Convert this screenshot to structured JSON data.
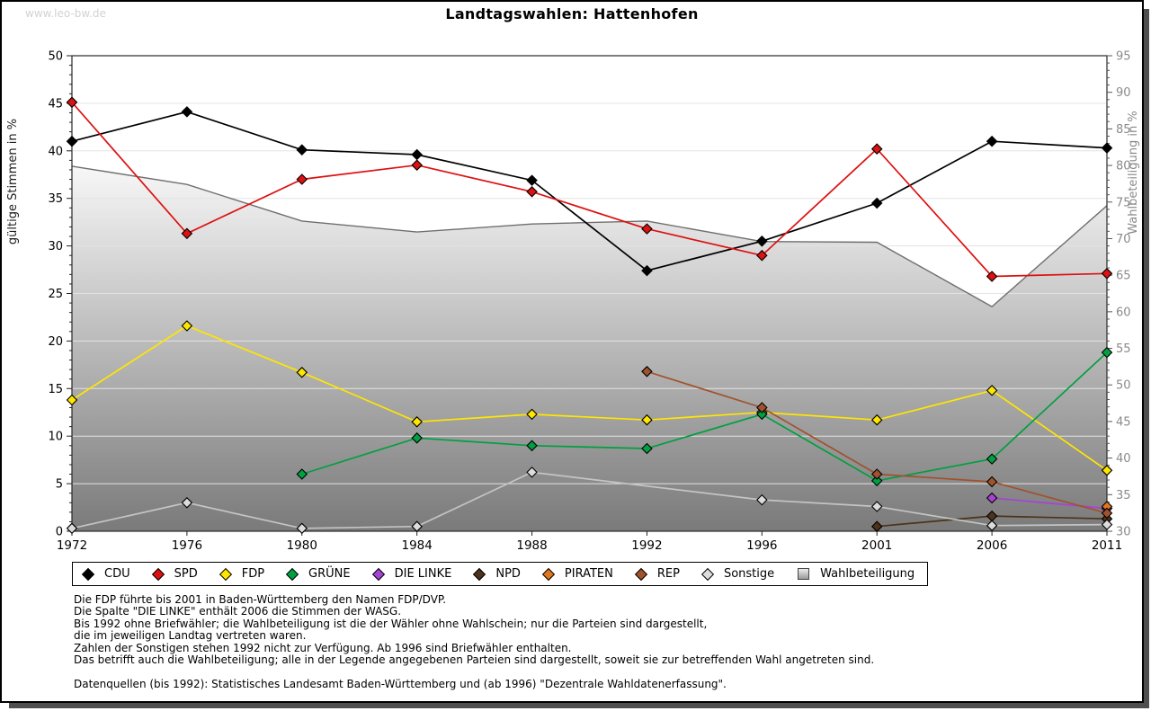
{
  "page": {
    "watermark": "www.leo-bw.de",
    "title": "Landtagswahlen: Hattenhofen"
  },
  "chart_data": {
    "type": "line",
    "title": "Landtagswahlen: Hattenhofen",
    "x_categories": [
      "1972",
      "1976",
      "1980",
      "1984",
      "1988",
      "1992",
      "1996",
      "2001",
      "2006",
      "2011"
    ],
    "y_left": {
      "label": "gültige Stimmen in %",
      "min": 0,
      "max": 50,
      "tick_step": 5,
      "minor_step": 1
    },
    "y_right": {
      "label": "Wahlbeteiligung in %",
      "min": 30,
      "max": 95,
      "tick_step": 5,
      "minor_step": 1
    },
    "grid": true,
    "legend_position": "bottom",
    "series": [
      {
        "name": "CDU",
        "color": "#000000",
        "axis": "left",
        "values": [
          41.0,
          44.1,
          40.1,
          39.6,
          36.9,
          27.4,
          30.5,
          34.5,
          41.0,
          40.3
        ]
      },
      {
        "name": "SPD",
        "color": "#dd1111",
        "axis": "left",
        "values": [
          45.1,
          31.3,
          37.0,
          38.5,
          35.7,
          31.8,
          29.0,
          40.2,
          26.8,
          27.1
        ]
      },
      {
        "name": "FDP",
        "color": "#ffe600",
        "axis": "left",
        "values": [
          13.8,
          21.6,
          16.7,
          11.5,
          12.3,
          11.7,
          12.5,
          11.7,
          14.8,
          6.4
        ]
      },
      {
        "name": "GRÜNE",
        "color": "#00a040",
        "axis": "left",
        "values": [
          null,
          null,
          6.0,
          9.8,
          9.0,
          8.7,
          12.3,
          5.3,
          7.6,
          18.8
        ]
      },
      {
        "name": "DIE LINKE",
        "color": "#a544d4",
        "axis": "left",
        "values": [
          null,
          null,
          null,
          null,
          null,
          null,
          null,
          null,
          3.5,
          2.4
        ]
      },
      {
        "name": "NPD",
        "color": "#4d331a",
        "axis": "left",
        "values": [
          null,
          null,
          null,
          null,
          null,
          null,
          null,
          0.5,
          1.6,
          1.3
        ]
      },
      {
        "name": "PIRATEN",
        "color": "#e07820",
        "axis": "left",
        "values": [
          null,
          null,
          null,
          null,
          null,
          null,
          null,
          null,
          null,
          2.6
        ]
      },
      {
        "name": "REP",
        "color": "#a0522d",
        "axis": "left",
        "values": [
          null,
          null,
          null,
          null,
          null,
          16.8,
          13.0,
          6.0,
          5.2,
          1.9
        ]
      },
      {
        "name": "Sonstige",
        "color": "#c4c4c4",
        "marker_color": "#dcdcdc",
        "axis": "left",
        "values": [
          0.3,
          3.0,
          0.3,
          0.5,
          6.2,
          null,
          3.3,
          2.6,
          0.6,
          0.7
        ]
      },
      {
        "name": "Wahlbeteiligung",
        "type": "area",
        "axis": "right",
        "color": "#c8c8c8",
        "edge_color": "#6f6f6f",
        "gradient": [
          "#fbfbfb",
          "#7a7a7a"
        ],
        "values": [
          79.9,
          77.4,
          72.4,
          70.9,
          72.0,
          72.4,
          69.6,
          69.5,
          60.7,
          74.5
        ]
      }
    ]
  },
  "footnotes": [
    "Die FDP führte bis 2001 in Baden-Württemberg den Namen FDP/DVP.",
    "Die Spalte \"DIE LINKE\" enthält 2006 die Stimmen der WASG.",
    "Bis 1992 ohne Briefwähler; die Wahlbeteiligung ist die der Wähler ohne Wahlschein; nur die Parteien sind dargestellt,",
    "die im jeweiligen Landtag vertreten waren.",
    "Zahlen der Sonstigen stehen 1992 nicht zur Verfügung. Ab 1996 sind Briefwähler enthalten.",
    "Das betrifft auch die Wahlbeteiligung; alle in der Legende angegebenen Parteien sind dargestellt, soweit sie zur betreffenden Wahl angetreten sind.",
    "",
    "Datenquellen (bis 1992): Statistisches Landesamt Baden-Württemberg und (ab 1996) \"Dezentrale Wahldatenerfassung\"."
  ]
}
